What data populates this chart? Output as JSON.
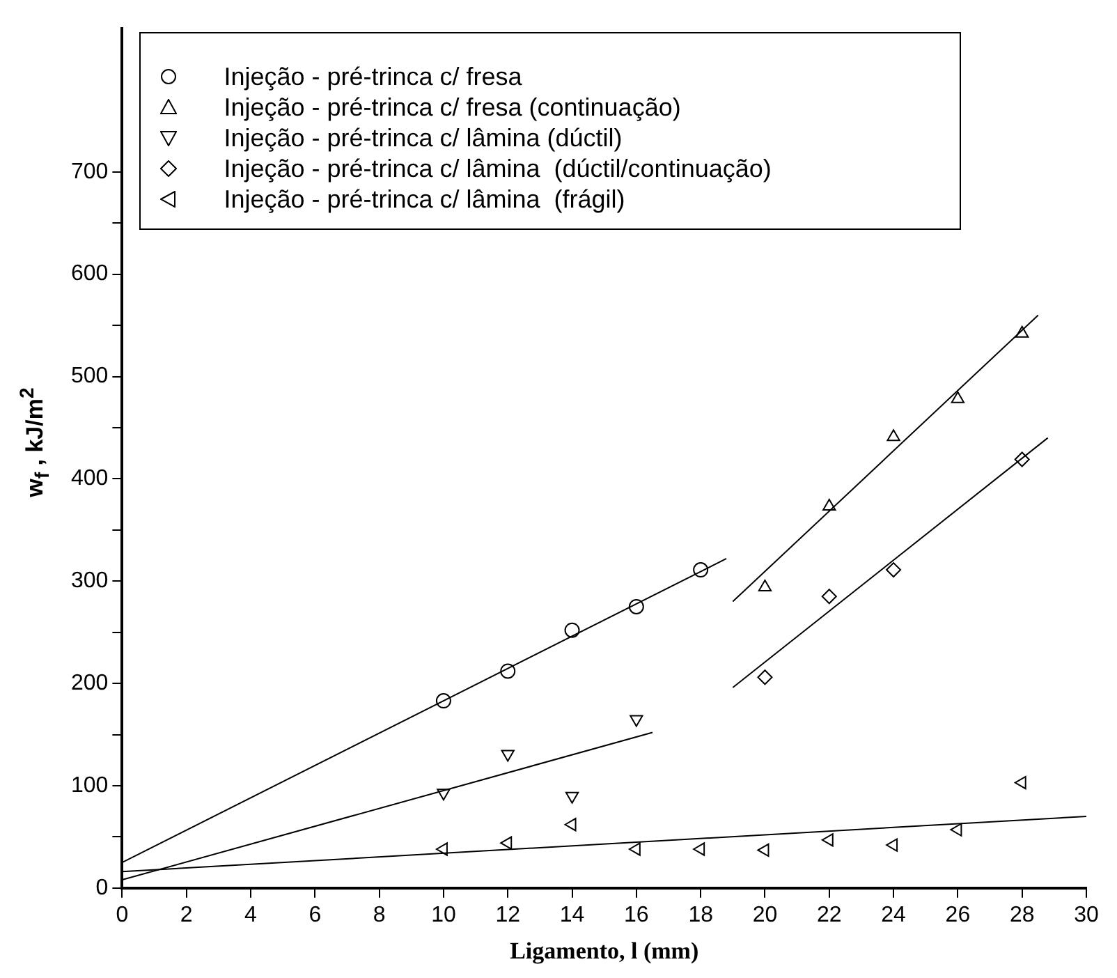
{
  "chart_data": {
    "type": "scatter",
    "xlabel": "Ligamento, l (mm)",
    "ylabel": "w$_{f}$ , kJ/m$^{2}$",
    "xlim": [
      0,
      30
    ],
    "xticks": [
      0,
      2,
      4,
      6,
      8,
      10,
      12,
      14,
      16,
      18,
      20,
      22,
      24,
      26,
      28,
      30
    ],
    "ylim": [
      0,
      840
    ],
    "yticks": [
      0,
      {
        "value": 50,
        "label": null
      },
      100,
      {
        "value": 150,
        "label": null
      },
      200,
      {
        "value": 250,
        "label": null
      },
      300,
      {
        "value": 350,
        "label": null
      },
      400,
      {
        "value": 450,
        "label": null
      },
      500,
      {
        "value": 550,
        "label": null
      },
      600,
      {
        "value": 650,
        "label": null
      },
      700
    ],
    "grid": false,
    "legend": "top",
    "series": [
      {
        "name": "Injeção - pré-trinca c/ fresa",
        "marker": "circle",
        "color": "#000000",
        "x": [
          10,
          12,
          14,
          16,
          18
        ],
        "values": [
          183,
          212,
          252,
          275,
          311
        ]
      },
      {
        "name": "Injeção - pré-trinca c/ fresa (continuação)",
        "marker": "triangle",
        "color": "#000000",
        "x": [
          20,
          22,
          24,
          26,
          28
        ],
        "values": [
          294,
          373,
          441,
          478,
          542
        ]
      },
      {
        "name": "Injeção - pré-trinca c/ lâmina (dúctil)",
        "marker": "triangle-down",
        "color": "#000000",
        "x": [
          10,
          12,
          14,
          16
        ],
        "values": [
          93,
          131,
          90,
          165
        ]
      },
      {
        "name": "Injeção - pré-trinca c/ lâmina  (dúctil/continuação)",
        "marker": "diamond",
        "color": "#000000",
        "x": [
          20,
          22,
          24,
          28
        ],
        "values": [
          206,
          285,
          311,
          419
        ]
      },
      {
        "name": "Injeção - pré-trinca c/ lâmina  (frágil)",
        "marker": "triangle-left",
        "color": "#000000",
        "x": [
          10,
          12,
          14,
          16,
          18,
          20,
          22,
          24,
          26,
          28
        ],
        "values": [
          38,
          44,
          62,
          38,
          38,
          37,
          47,
          42,
          57,
          103
        ]
      },
      {
        "type": "line",
        "color": "#000000",
        "x": [
          0,
          18.8
        ],
        "values": [
          25,
          322
        ]
      },
      {
        "type": "line",
        "color": "#000000",
        "x": [
          19,
          28.5
        ],
        "values": [
          280,
          560
        ]
      },
      {
        "type": "line",
        "color": "#000000",
        "x": [
          0,
          16.5
        ],
        "values": [
          8,
          152
        ]
      },
      {
        "type": "line",
        "color": "#000000",
        "x": [
          19,
          28.8
        ],
        "values": [
          196,
          440
        ]
      },
      {
        "type": "line",
        "color": "#000000",
        "x": [
          0,
          30
        ],
        "values": [
          16,
          70
        ]
      }
    ]
  }
}
